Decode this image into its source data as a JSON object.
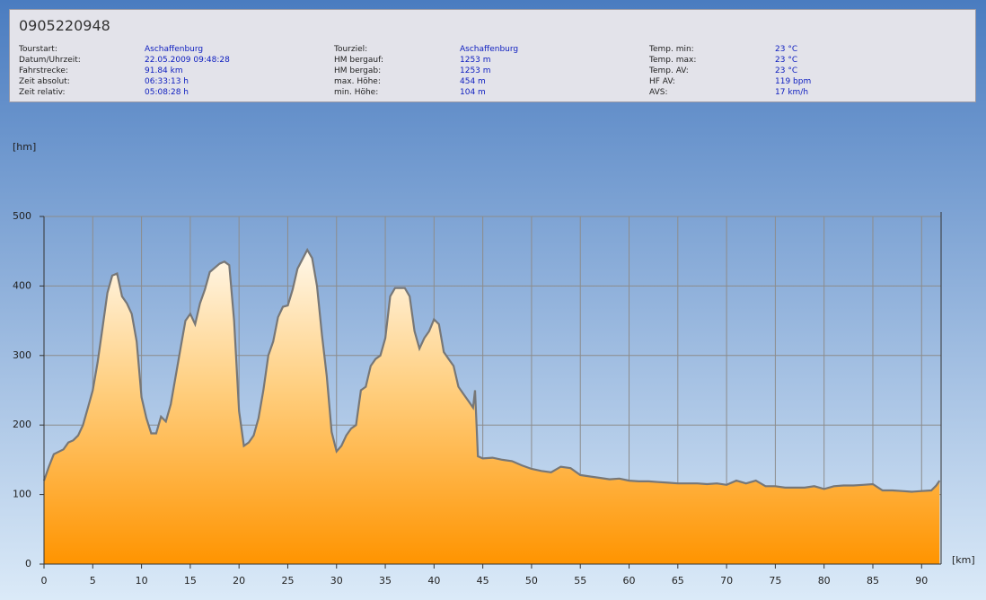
{
  "header": {
    "title": "0905220948",
    "columns": [
      [
        {
          "label": "Tourstart:",
          "value": "Aschaffenburg"
        },
        {
          "label": "Datum/Uhrzeit:",
          "value": "22.05.2009 09:48:28"
        },
        {
          "label": "Fahrstrecke:",
          "value": "91.84 km"
        },
        {
          "label": "Zeit absolut:",
          "value": "06:33:13 h"
        },
        {
          "label": "Zeit relativ:",
          "value": "05:08:28 h"
        }
      ],
      [
        {
          "label": "Tourziel:",
          "value": "Aschaffenburg"
        },
        {
          "label": "HM bergauf:",
          "value": "1253 m"
        },
        {
          "label": "HM bergab:",
          "value": "1253 m"
        },
        {
          "label": "max. Höhe:",
          "value": "454 m"
        },
        {
          "label": "min. Höhe:",
          "value": "104 m"
        }
      ],
      [
        {
          "label": "Temp. min:",
          "value": "23 °C"
        },
        {
          "label": "Temp. max:",
          "value": "23 °C"
        },
        {
          "label": "Temp. AV:",
          "value": "23 °C"
        },
        {
          "label": "HF AV:",
          "value": "119 bpm"
        },
        {
          "label": "AVS:",
          "value": "17 km/h"
        }
      ]
    ]
  },
  "chart_data": {
    "type": "area",
    "y_label": "[hm]",
    "x_label": "[km]",
    "grid": true,
    "color": "#ff9900",
    "line_color": "#777777",
    "xlim": [
      0,
      92
    ],
    "ylim": [
      0,
      500
    ],
    "xticks": [
      0,
      5,
      10,
      15,
      20,
      25,
      30,
      35,
      40,
      45,
      50,
      55,
      60,
      65,
      70,
      75,
      80,
      85,
      90
    ],
    "yticks": [
      0,
      100,
      200,
      300,
      400,
      500
    ],
    "x": [
      0,
      0.5,
      1,
      2,
      2.5,
      3,
      3.5,
      4,
      4.5,
      5,
      5.5,
      6,
      6.5,
      7,
      7.5,
      8,
      8.5,
      9,
      9.5,
      10,
      10.5,
      11,
      11.5,
      12,
      12.5,
      13,
      13.5,
      14,
      14.5,
      15,
      15.5,
      16,
      16.5,
      17,
      18,
      18.5,
      19,
      19.5,
      20,
      20.5,
      21,
      21.5,
      22,
      22.5,
      23,
      23.5,
      24,
      24.5,
      25,
      25.5,
      26,
      27,
      27.5,
      28,
      28.5,
      29,
      29.5,
      30,
      30.5,
      31,
      31.5,
      32,
      32.5,
      33,
      33.5,
      34,
      34.5,
      35,
      35.5,
      36,
      37,
      37.5,
      38,
      38.5,
      39,
      39.5,
      40,
      40.5,
      41,
      41.5,
      42,
      42.5,
      43,
      43.5,
      44,
      44.2,
      44.5,
      45,
      46,
      47,
      48,
      49,
      50,
      51,
      52,
      53,
      54,
      55,
      56,
      57,
      58,
      59,
      60,
      61,
      62,
      63,
      64,
      65,
      66,
      67,
      68,
      69,
      70,
      71,
      72,
      73,
      74,
      75,
      76,
      77,
      78,
      79,
      80,
      81,
      82,
      83,
      84,
      85,
      86,
      87,
      88,
      89,
      90,
      91,
      91.5,
      91.84
    ],
    "values": [
      120,
      140,
      158,
      165,
      175,
      178,
      185,
      200,
      225,
      250,
      290,
      340,
      390,
      415,
      418,
      385,
      375,
      360,
      320,
      240,
      210,
      188,
      188,
      212,
      205,
      230,
      270,
      310,
      350,
      360,
      345,
      375,
      395,
      420,
      432,
      435,
      430,
      350,
      220,
      170,
      175,
      185,
      210,
      250,
      300,
      320,
      355,
      370,
      372,
      395,
      425,
      452,
      440,
      400,
      330,
      270,
      190,
      162,
      170,
      185,
      195,
      200,
      250,
      255,
      285,
      295,
      300,
      325,
      385,
      397,
      397,
      385,
      335,
      310,
      325,
      335,
      352,
      345,
      305,
      295,
      285,
      255,
      245,
      235,
      225,
      250,
      155,
      152,
      153,
      150,
      148,
      142,
      137,
      134,
      132,
      140,
      138,
      128,
      126,
      124,
      122,
      123,
      120,
      119,
      119,
      118,
      117,
      116,
      116,
      116,
      115,
      116,
      114,
      120,
      116,
      120,
      112,
      112,
      110,
      110,
      110,
      112,
      108,
      112,
      113,
      113,
      114,
      115,
      106,
      106,
      105,
      104,
      105,
      106,
      113,
      120
    ]
  }
}
